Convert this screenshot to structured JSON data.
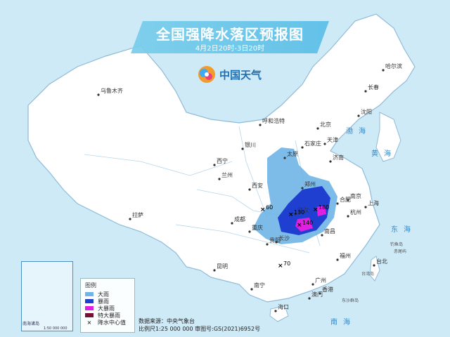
{
  "title": "全国强降水落区预报图",
  "subtitle": "4月2日20时-3日20时",
  "brand": "中国天气",
  "colors": {
    "sea": "#cfeaf7",
    "land": "#ffffff",
    "border": "#8fbbd8",
    "heavy_rain": "#6fb4e6",
    "rainstorm": "#1f3fd1",
    "heavy_rainstorm": "#e020e0",
    "extreme_rainstorm": "#7a1030",
    "banner": "#5fbde6"
  },
  "legend": {
    "title": "图例",
    "items": [
      {
        "label": "大雨",
        "color": "#6fb4e6"
      },
      {
        "label": "暴雨",
        "color": "#1f3fd1"
      },
      {
        "label": "大暴雨",
        "color": "#e020e0"
      },
      {
        "label": "特大暴雨",
        "color": "#7a1030"
      },
      {
        "label": "降水中心值",
        "marker": "×"
      }
    ]
  },
  "source": "数据来源：中央气象台",
  "scale_text": "比例尺1:25 000 000   审图号:GS(2021)6952号",
  "inset": {
    "label": "南海诸岛",
    "scale": "1:50 000 000"
  },
  "cities": [
    "乌鲁木齐",
    "拉萨",
    "西宁",
    "兰州",
    "银川",
    "呼和浩特",
    "北京",
    "天津",
    "石家庄",
    "太原",
    "济南",
    "郑州",
    "西安",
    "成都",
    "重庆",
    "贵阳",
    "昆明",
    "南宁",
    "长沙",
    "武汉",
    "合肥",
    "南京",
    "上海",
    "杭州",
    "南昌",
    "福州",
    "台北",
    "广州",
    "香港",
    "澳门",
    "海口",
    "沈阳",
    "长春",
    "哈尔滨"
  ],
  "seas": [
    "渤海",
    "黄海",
    "东海",
    "南海"
  ],
  "islands": [
    "台湾岛",
    "钓鱼岛",
    "赤尾屿",
    "东沙群岛"
  ],
  "rain_values": [
    "60",
    "130",
    "180",
    "140",
    "70"
  ]
}
